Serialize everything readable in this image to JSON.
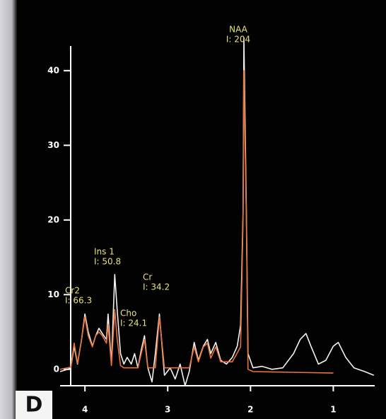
{
  "chart_data": {
    "type": "line",
    "panel_label": "D",
    "xlim": [
      4.3,
      0.5
    ],
    "ylim": [
      -2.2,
      43.3
    ],
    "xticks": [
      4,
      3,
      2,
      1
    ],
    "yticks": [
      0,
      10,
      20,
      30,
      40
    ],
    "axis_color": "#ffffff",
    "label_color": "#e8e27a",
    "series": [
      {
        "color": "#f2f2f2",
        "x": [
          4.3,
          4.21,
          4.17,
          4.13,
          4.09,
          4.04,
          4.0,
          3.96,
          3.91,
          3.87,
          3.83,
          3.79,
          3.74,
          3.72,
          3.68,
          3.64,
          3.61,
          3.57,
          3.53,
          3.49,
          3.44,
          3.4,
          3.36,
          3.32,
          3.28,
          3.24,
          3.19,
          3.15,
          3.1,
          3.04,
          2.97,
          2.91,
          2.85,
          2.79,
          2.74,
          2.68,
          2.63,
          2.57,
          2.52,
          2.48,
          2.42,
          2.36,
          2.29,
          2.22,
          2.16,
          2.12,
          2.09,
          2.08,
          2.05,
          2.03,
          1.97,
          1.86,
          1.74,
          1.61,
          1.48,
          1.4,
          1.33,
          1.27,
          1.18,
          1.09,
          1.0,
          0.94,
          0.85,
          0.75,
          0.62,
          0.51
        ],
        "values": [
          -0.3,
          0,
          0.2,
          3.1,
          0.7,
          4.0,
          7.4,
          5.0,
          3.1,
          4.5,
          5.5,
          4.8,
          4.0,
          7.4,
          0.7,
          12.7,
          7.9,
          2.1,
          0.7,
          1.6,
          0.7,
          2.1,
          0.2,
          2.6,
          4.5,
          0.2,
          -1.7,
          2.1,
          7.4,
          -0.8,
          0.2,
          -1.3,
          0.7,
          -2.2,
          -0.3,
          3.6,
          1.2,
          3.1,
          4.0,
          2.1,
          3.6,
          1.2,
          0.7,
          1.6,
          3.1,
          5.9,
          21,
          44.4,
          21,
          2.1,
          0.2,
          0.4,
          0,
          0.2,
          2.1,
          4.0,
          4.8,
          3.1,
          0.7,
          1.2,
          3.1,
          3.6,
          1.6,
          0.2,
          -0.3,
          -0.8
        ]
      },
      {
        "color": "#e8743a",
        "x": [
          4.3,
          4.17,
          4.13,
          4.09,
          4.04,
          4.0,
          3.96,
          3.91,
          3.87,
          3.83,
          3.79,
          3.74,
          3.72,
          3.68,
          3.64,
          3.61,
          3.57,
          3.53,
          3.44,
          3.36,
          3.28,
          3.24,
          3.15,
          3.1,
          3.04,
          2.85,
          2.74,
          2.68,
          2.63,
          2.57,
          2.52,
          2.48,
          2.42,
          2.36,
          2.22,
          2.12,
          2.09,
          2.08,
          2.05,
          2.03,
          1.97,
          1.5,
          1.0
        ],
        "values": [
          0,
          0.3,
          3.5,
          0.8,
          4.0,
          7.0,
          4.5,
          3.0,
          4.5,
          5.0,
          4.5,
          3.5,
          6.0,
          0.5,
          8.0,
          4.0,
          0.5,
          0.2,
          0.2,
          0.2,
          4.0,
          0.2,
          0.2,
          7.0,
          0.2,
          0.2,
          0.2,
          3.0,
          1.0,
          3.0,
          3.5,
          1.5,
          3.0,
          1.0,
          1.0,
          3.0,
          20,
          40,
          20,
          0,
          -0.3,
          -0.4,
          -0.5
        ]
      }
    ],
    "annotations": [
      {
        "lines": [
          "NAA",
          "I: 204"
        ]
      },
      {
        "lines": [
          "Ins 1",
          "I: 50.8"
        ]
      },
      {
        "lines": [
          "Cr",
          "I: 34.2"
        ]
      },
      {
        "lines": [
          "Cr2",
          "I: 66.3"
        ]
      },
      {
        "lines": [
          "Cho",
          "I: 24.1"
        ]
      }
    ]
  }
}
